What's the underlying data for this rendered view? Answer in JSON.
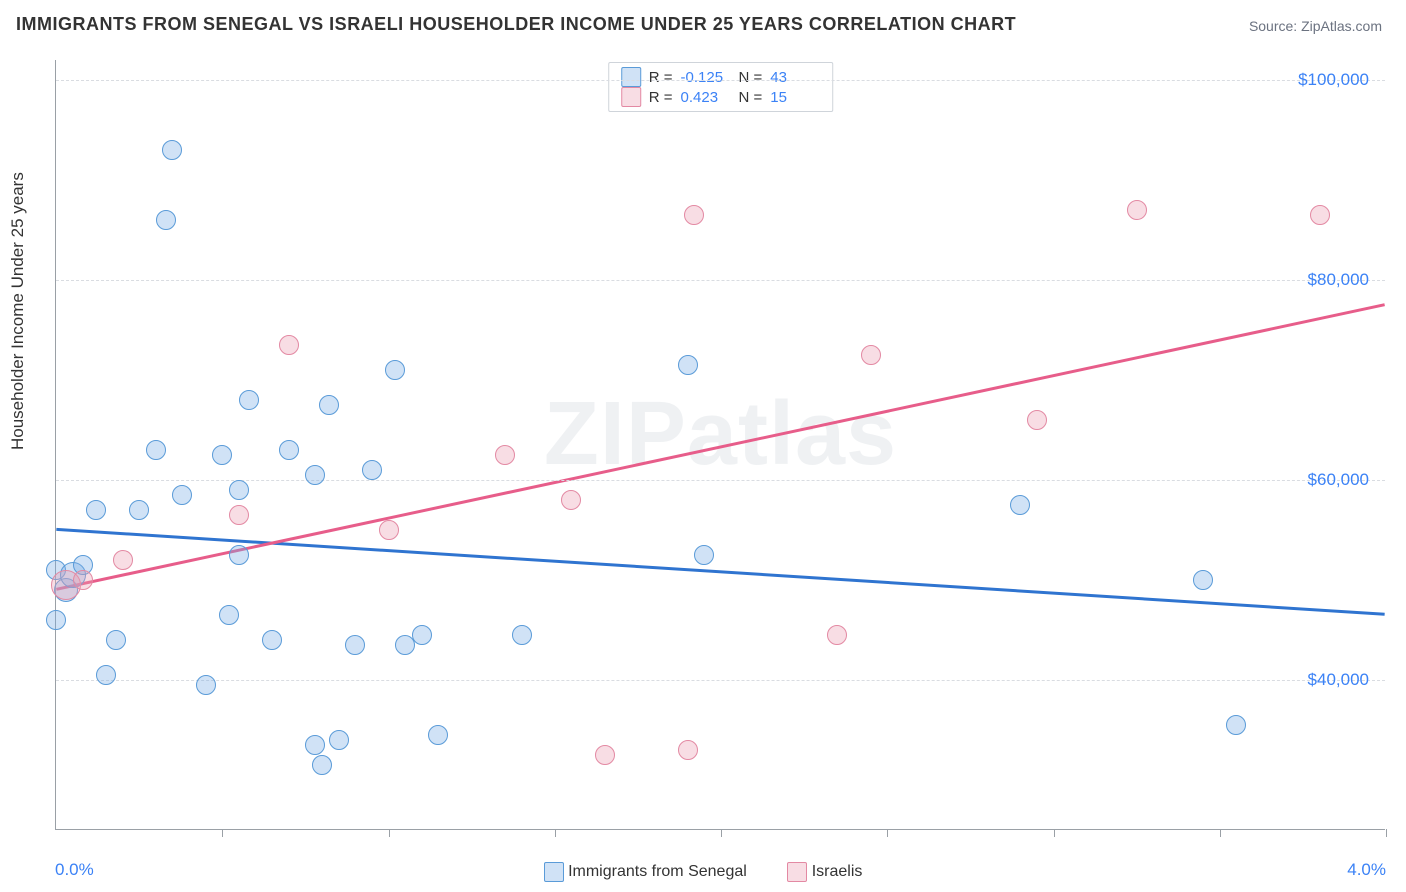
{
  "title": "IMMIGRANTS FROM SENEGAL VS ISRAELI HOUSEHOLDER INCOME UNDER 25 YEARS CORRELATION CHART",
  "source": "Source: ZipAtlas.com",
  "watermark": "ZIPatlas",
  "ylabel": "Householder Income Under 25 years",
  "xaxis": {
    "min": 0.0,
    "max": 4.0,
    "min_label": "0.0%",
    "max_label": "4.0%",
    "ticks": [
      0.0,
      0.5,
      1.0,
      1.5,
      2.0,
      2.5,
      3.0,
      3.5,
      4.0
    ]
  },
  "yaxis": {
    "min": 25000,
    "max": 102000,
    "gridlines": [
      40000,
      60000,
      80000,
      100000
    ],
    "labels": [
      "$40,000",
      "$60,000",
      "$80,000",
      "$100,000"
    ]
  },
  "series": [
    {
      "id": "senegal",
      "label": "Immigrants from Senegal",
      "fill": "rgba(120, 172, 230, 0.35)",
      "stroke": "#5a9bd8",
      "line_color": "#2f74d0",
      "R_label": "R =",
      "R": "-0.125",
      "N_label": "N =",
      "N": "43",
      "marker_r": 9,
      "trend": {
        "x1": 0.0,
        "y1": 55000,
        "x2": 4.0,
        "y2": 46500
      },
      "points": [
        {
          "x": 0.0,
          "y": 46000,
          "r": 9
        },
        {
          "x": 0.0,
          "y": 51000,
          "r": 9
        },
        {
          "x": 0.03,
          "y": 49000,
          "r": 11
        },
        {
          "x": 0.05,
          "y": 50500,
          "r": 12
        },
        {
          "x": 0.08,
          "y": 51500,
          "r": 9
        },
        {
          "x": 0.12,
          "y": 57000,
          "r": 9
        },
        {
          "x": 0.15,
          "y": 40500,
          "r": 9
        },
        {
          "x": 0.18,
          "y": 44000,
          "r": 9
        },
        {
          "x": 0.25,
          "y": 57000,
          "r": 9
        },
        {
          "x": 0.3,
          "y": 63000,
          "r": 9
        },
        {
          "x": 0.33,
          "y": 86000,
          "r": 9
        },
        {
          "x": 0.35,
          "y": 93000,
          "r": 9
        },
        {
          "x": 0.38,
          "y": 58500,
          "r": 9
        },
        {
          "x": 0.45,
          "y": 39500,
          "r": 9
        },
        {
          "x": 0.5,
          "y": 62500,
          "r": 9
        },
        {
          "x": 0.52,
          "y": 46500,
          "r": 9
        },
        {
          "x": 0.55,
          "y": 52500,
          "r": 9
        },
        {
          "x": 0.55,
          "y": 59000,
          "r": 9
        },
        {
          "x": 0.58,
          "y": 68000,
          "r": 9
        },
        {
          "x": 0.65,
          "y": 44000,
          "r": 9
        },
        {
          "x": 0.7,
          "y": 63000,
          "r": 9
        },
        {
          "x": 0.78,
          "y": 33500,
          "r": 9
        },
        {
          "x": 0.78,
          "y": 60500,
          "r": 9
        },
        {
          "x": 0.8,
          "y": 31500,
          "r": 9
        },
        {
          "x": 0.82,
          "y": 67500,
          "r": 9
        },
        {
          "x": 0.85,
          "y": 34000,
          "r": 9
        },
        {
          "x": 0.9,
          "y": 43500,
          "r": 9
        },
        {
          "x": 0.95,
          "y": 61000,
          "r": 9
        },
        {
          "x": 1.02,
          "y": 71000,
          "r": 9
        },
        {
          "x": 1.05,
          "y": 43500,
          "r": 9
        },
        {
          "x": 1.1,
          "y": 44500,
          "r": 9
        },
        {
          "x": 1.15,
          "y": 34500,
          "r": 9
        },
        {
          "x": 1.4,
          "y": 44500,
          "r": 9
        },
        {
          "x": 1.9,
          "y": 71500,
          "r": 9
        },
        {
          "x": 1.95,
          "y": 52500,
          "r": 9
        },
        {
          "x": 2.9,
          "y": 57500,
          "r": 9
        },
        {
          "x": 3.45,
          "y": 50000,
          "r": 9
        },
        {
          "x": 3.55,
          "y": 35500,
          "r": 9
        }
      ]
    },
    {
      "id": "israelis",
      "label": "Israelis",
      "fill": "rgba(236, 157, 178, 0.35)",
      "stroke": "#e389a3",
      "line_color": "#e75d8a",
      "R_label": "R =",
      "R": "0.423",
      "N_label": "N =",
      "N": "15",
      "marker_r": 9,
      "trend": {
        "x1": 0.0,
        "y1": 49000,
        "x2": 4.0,
        "y2": 77500
      },
      "points": [
        {
          "x": 0.03,
          "y": 49500,
          "r": 14
        },
        {
          "x": 0.08,
          "y": 50000,
          "r": 9
        },
        {
          "x": 0.2,
          "y": 52000,
          "r": 9
        },
        {
          "x": 0.55,
          "y": 56500,
          "r": 9
        },
        {
          "x": 0.7,
          "y": 73500,
          "r": 9
        },
        {
          "x": 1.0,
          "y": 55000,
          "r": 9
        },
        {
          "x": 1.35,
          "y": 62500,
          "r": 9
        },
        {
          "x": 1.55,
          "y": 58000,
          "r": 9
        },
        {
          "x": 1.65,
          "y": 32500,
          "r": 9
        },
        {
          "x": 1.9,
          "y": 33000,
          "r": 9
        },
        {
          "x": 1.92,
          "y": 86500,
          "r": 9
        },
        {
          "x": 2.35,
          "y": 44500,
          "r": 9
        },
        {
          "x": 2.45,
          "y": 72500,
          "r": 9
        },
        {
          "x": 2.95,
          "y": 66000,
          "r": 9
        },
        {
          "x": 3.25,
          "y": 87000,
          "r": 9
        },
        {
          "x": 3.8,
          "y": 86500,
          "r": 9
        }
      ]
    }
  ],
  "legend_bottom": [
    {
      "series": 0
    },
    {
      "series": 1
    }
  ]
}
